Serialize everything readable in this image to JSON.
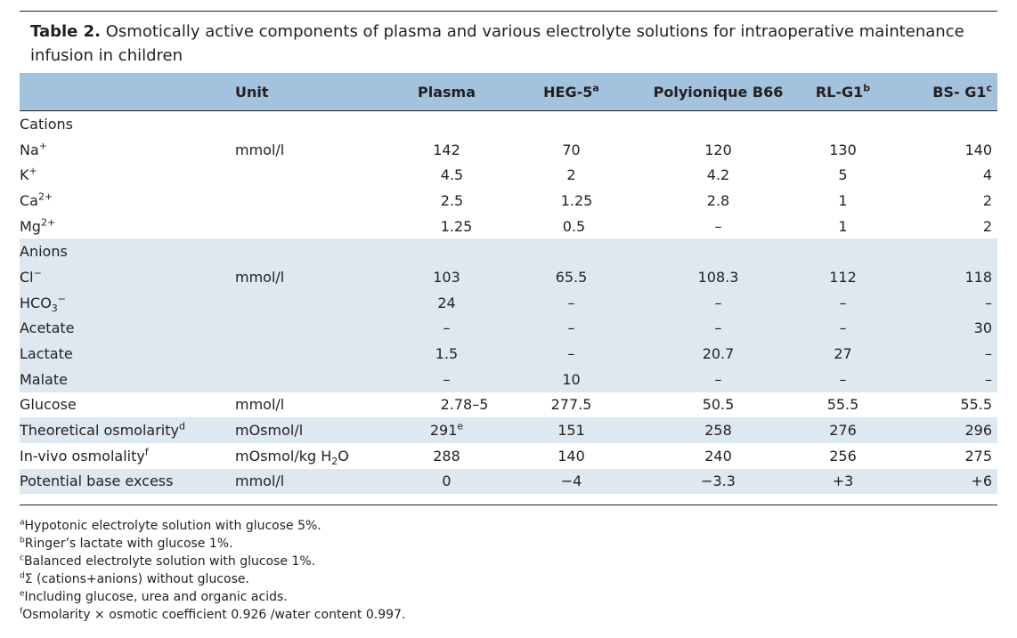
{
  "caption": {
    "label": "Table 2.",
    "text": "Osmotically active components of plasma and various electrolyte solutions for intraoperative maintenance infusion in children"
  },
  "headers": {
    "unit": "Unit",
    "plasma": "Plasma",
    "heg5": "HEG-5",
    "heg5_note": "a",
    "poly": "Polyionique B66",
    "rlg1": "RL-G1",
    "rlg1_note": "b",
    "bsg1": "BS- G1",
    "bsg1_note": "c"
  },
  "groups": {
    "cations": "Cations",
    "anions": "Anions"
  },
  "rows": {
    "na": {
      "label": "Na",
      "sup": "+",
      "unit": "mmol/l",
      "plasma": "142",
      "heg5": "70",
      "poly": "120",
      "rlg1": "130",
      "bsg1": "140"
    },
    "k": {
      "label": "K",
      "sup": "+",
      "unit": "",
      "plasma": "4.5",
      "heg5": "2",
      "poly": "4.2",
      "rlg1": "5",
      "bsg1": "4"
    },
    "ca": {
      "label": "Ca",
      "sup": "2+",
      "unit": "",
      "plasma": "2.5",
      "heg5": "1.25",
      "poly": "2.8",
      "rlg1": "1",
      "bsg1": "2"
    },
    "mg": {
      "label": "Mg",
      "sup": "2+",
      "unit": "",
      "plasma": "1.25",
      "heg5": "0.5",
      "poly": "–",
      "rlg1": "1",
      "bsg1": "2"
    },
    "cl": {
      "label": "Cl",
      "sup": "−",
      "unit": "mmol/l",
      "plasma": "103",
      "heg5": "65.5",
      "poly": "108.3",
      "rlg1": "112",
      "bsg1": "118"
    },
    "hco3": {
      "label": "HCO",
      "sub": "3",
      "sup": "−",
      "unit": "",
      "plasma": "24",
      "heg5": "–",
      "poly": "–",
      "rlg1": "–",
      "bsg1": "–"
    },
    "acetate": {
      "label": "Acetate",
      "unit": "",
      "plasma": "–",
      "heg5": "–",
      "poly": "–",
      "rlg1": "–",
      "bsg1": "30"
    },
    "lactate": {
      "label": "Lactate",
      "unit": "",
      "plasma": "1.5",
      "heg5": "–",
      "poly": "20.7",
      "rlg1": "27",
      "bsg1": "–"
    },
    "malate": {
      "label": "Malate",
      "unit": "",
      "plasma": "–",
      "heg5": "10",
      "poly": "–",
      "rlg1": "–",
      "bsg1": "–"
    },
    "glucose": {
      "label": "Glucose",
      "unit": "mmol/l",
      "plasma": "2.78–5",
      "heg5": "277.5",
      "poly": "50.5",
      "rlg1": "55.5",
      "bsg1": "55.5"
    },
    "theo": {
      "label": "Theoretical osmolarity",
      "sup": "d",
      "unit": "mOsmol/l",
      "plasma": "291",
      "plasma_sup": "e",
      "heg5": "151",
      "poly": "258",
      "rlg1": "276",
      "bsg1": "296"
    },
    "invivo": {
      "label": "In-vivo osmolality",
      "sup": "f",
      "unit_pre": "mOsmol/kg H",
      "unit_sub": "2",
      "unit_post": "O",
      "plasma": "288",
      "heg5": "140",
      "poly": "240",
      "rlg1": "256",
      "bsg1": "275"
    },
    "pbe": {
      "label": "Potential base excess",
      "unit": "mmol/l",
      "plasma": "0",
      "heg5": "−4",
      "poly": "−3.3",
      "rlg1": "+3",
      "bsg1": "+6"
    }
  },
  "footnotes": [
    {
      "mark": "a",
      "text": "Hypotonic electrolyte solution with glucose 5%."
    },
    {
      "mark": "b",
      "text": "Ringer’s lactate with glucose 1%."
    },
    {
      "mark": "c",
      "text": "Balanced electrolyte solution with glucose 1%."
    },
    {
      "mark": "d",
      "text": "Σ (cations+anions) without glucose."
    },
    {
      "mark": "e",
      "text": "Including glucose, urea and organic acids."
    },
    {
      "mark": "f",
      "text": "Osmolarity × osmotic coefficient 0.926 /water content 0.997."
    }
  ]
}
